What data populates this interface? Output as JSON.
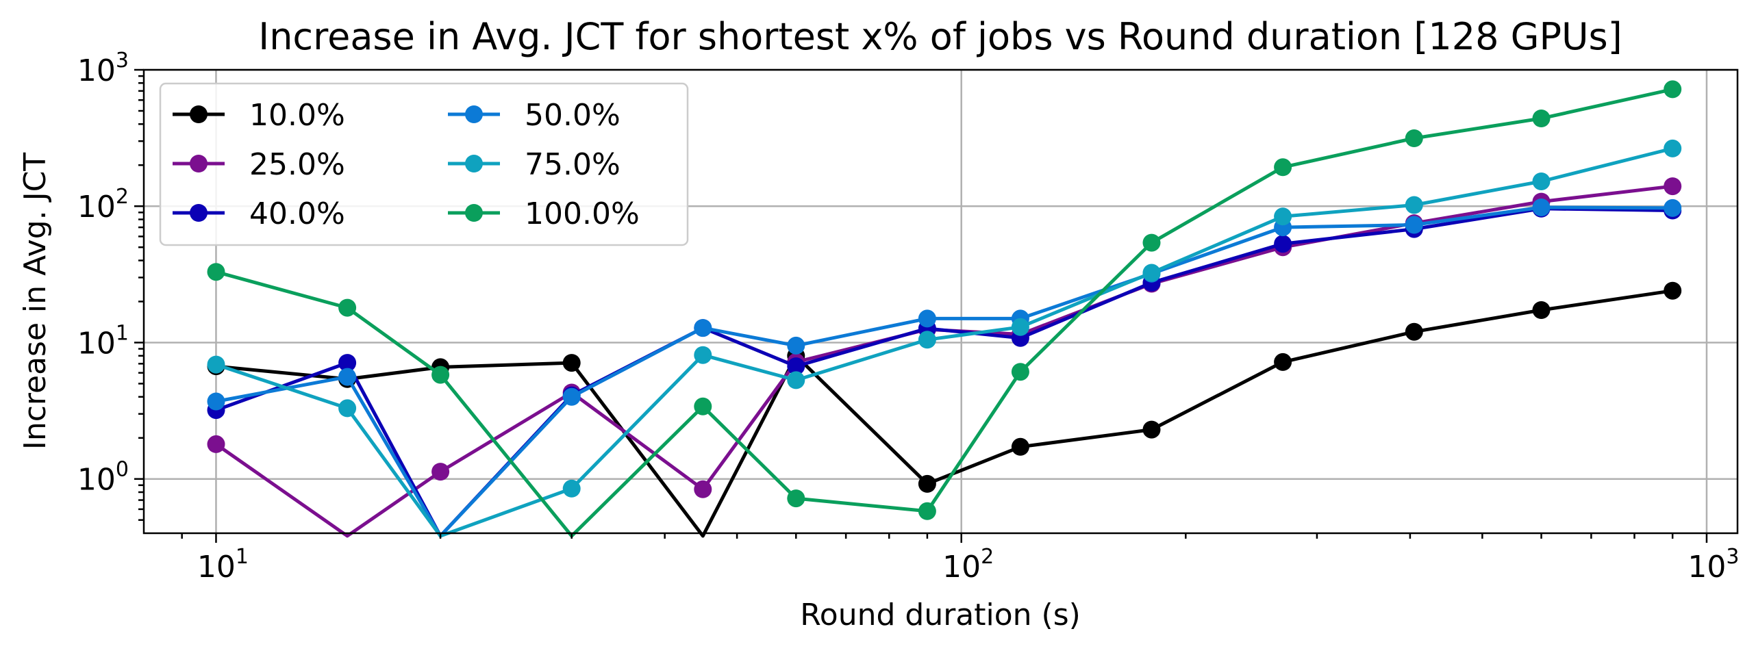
{
  "chart_data": {
    "type": "line",
    "title": "Increase in Avg. JCT for shortest x% of jobs vs Round duration [128 GPUs]",
    "xlabel": "Round duration (s)",
    "ylabel": "Increase in Avg. JCT",
    "xscale": "log",
    "yscale": "log",
    "xlim": [
      8,
      1100
    ],
    "ylim": [
      0.4,
      1000
    ],
    "grid": true,
    "legend_position": "upper-left",
    "legend_columns": 2,
    "x_ticks": [
      {
        "value": 10,
        "base": "10",
        "exp": "1"
      },
      {
        "value": 100,
        "base": "10",
        "exp": "2"
      },
      {
        "value": 1000,
        "base": "10",
        "exp": "3"
      }
    ],
    "y_ticks": [
      {
        "value": 1,
        "base": "10",
        "exp": "0"
      },
      {
        "value": 10,
        "base": "10",
        "exp": "1"
      },
      {
        "value": 100,
        "base": "10",
        "exp": "2"
      },
      {
        "value": 1000,
        "base": "10",
        "exp": "3"
      }
    ],
    "x": [
      10,
      15,
      20,
      30,
      45,
      60,
      90,
      120,
      180,
      270,
      405,
      600,
      900
    ],
    "series": [
      {
        "name": "10.0%",
        "color": "#000000",
        "values": [
          6.7,
          5.4,
          6.6,
          7.1,
          null,
          8.0,
          0.92,
          1.72,
          2.3,
          7.2,
          12.0,
          17.3,
          24.0
        ]
      },
      {
        "name": "25.0%",
        "color": "#7b0f8f",
        "values": [
          1.8,
          null,
          1.13,
          4.3,
          0.84,
          7.2,
          12.5,
          11.5,
          27.0,
          50.0,
          75.0,
          108.0,
          140.0
        ]
      },
      {
        "name": "40.0%",
        "color": "#0b00b5",
        "values": [
          3.2,
          7.1,
          null,
          4.1,
          12.8,
          6.7,
          12.7,
          10.8,
          27.5,
          53.0,
          68.0,
          96.0,
          93.0
        ]
      },
      {
        "name": "50.0%",
        "color": "#0c7ad6",
        "values": [
          3.7,
          5.6,
          null,
          4.0,
          12.8,
          9.5,
          15.0,
          15.0,
          32.0,
          70.0,
          73.0,
          98.0,
          97.0
        ]
      },
      {
        "name": "75.0%",
        "color": "#0fa2bf",
        "values": [
          6.9,
          3.3,
          null,
          0.85,
          8.1,
          5.3,
          10.5,
          13.0,
          32.5,
          84.0,
          102.0,
          152.0,
          265.0
        ]
      },
      {
        "name": "100.0%",
        "color": "#0a9f5c",
        "values": [
          33.0,
          18.0,
          5.8,
          null,
          3.4,
          0.72,
          0.58,
          6.1,
          54.0,
          193.0,
          315.0,
          440.0,
          720.0
        ]
      }
    ]
  }
}
